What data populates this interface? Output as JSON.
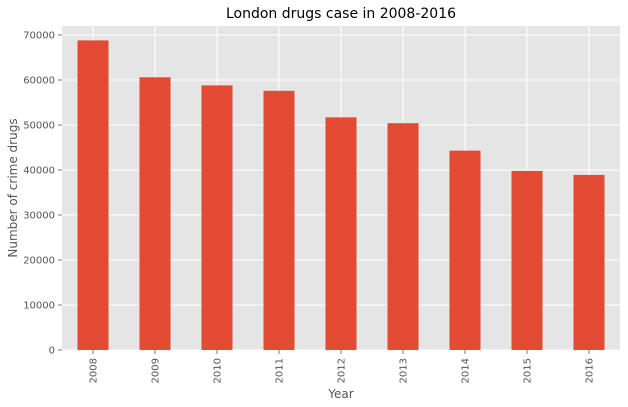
{
  "chart_data": {
    "type": "bar",
    "title": "London drugs case in 2008-2016",
    "xlabel": "Year",
    "ylabel": "Number of crime drugs",
    "categories": [
      "2008",
      "2009",
      "2010",
      "2011",
      "2012",
      "2013",
      "2014",
      "2015",
      "2016"
    ],
    "values": [
      68800,
      60600,
      58800,
      57600,
      51700,
      50400,
      44300,
      39800,
      38900
    ],
    "ylim": [
      0,
      72000
    ],
    "yticks": [
      0,
      10000,
      20000,
      30000,
      40000,
      50000,
      60000,
      70000
    ],
    "ytick_labels": [
      "0",
      "10000",
      "20000",
      "30000",
      "40000",
      "50000",
      "60000",
      "70000"
    ],
    "grid": true,
    "legend": "none",
    "colors": {
      "bar": "#E24A33",
      "plot_background": "#E5E5E5",
      "grid": "#FFFFFF",
      "text": "#555555",
      "title": "#000000"
    }
  }
}
